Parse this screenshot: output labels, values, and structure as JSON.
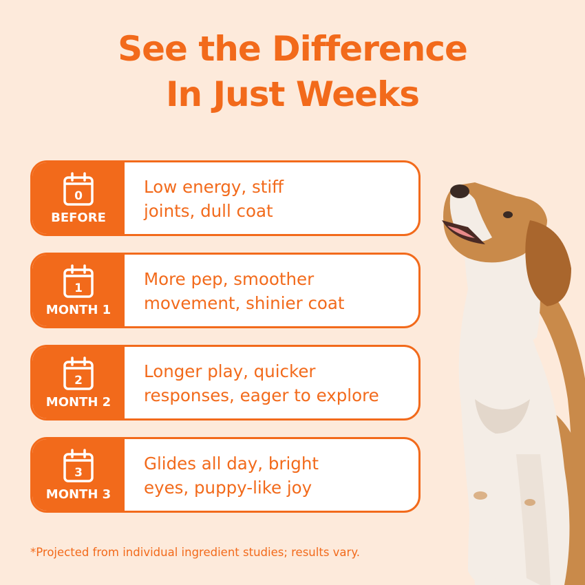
{
  "headline": {
    "line1": "See the Difference",
    "line2": "In Just Weeks"
  },
  "colors": {
    "accent": "#f26a1b",
    "background": "#fdeadb",
    "card": "#ffffff"
  },
  "timeline": [
    {
      "number": "0",
      "stage": "BEFORE",
      "line1": "Low energy, stiff",
      "line2": "joints, dull coat",
      "icon": "calendar-icon"
    },
    {
      "number": "1",
      "stage": "MONTH 1",
      "line1": "More pep, smoother",
      "line2": "movement, shinier coat",
      "icon": "calendar-icon"
    },
    {
      "number": "2",
      "stage": "MONTH 2",
      "line1": "Longer play, quicker",
      "line2": "responses, eager to explore",
      "icon": "calendar-icon"
    },
    {
      "number": "3",
      "stage": "MONTH 3",
      "line1": "Glides all day, bright",
      "line2": "eyes, puppy-like joy",
      "icon": "calendar-icon"
    }
  ],
  "footnote": "*Projected from individual ingredient studies; results vary.",
  "image": {
    "subject": "beagle-dog"
  }
}
